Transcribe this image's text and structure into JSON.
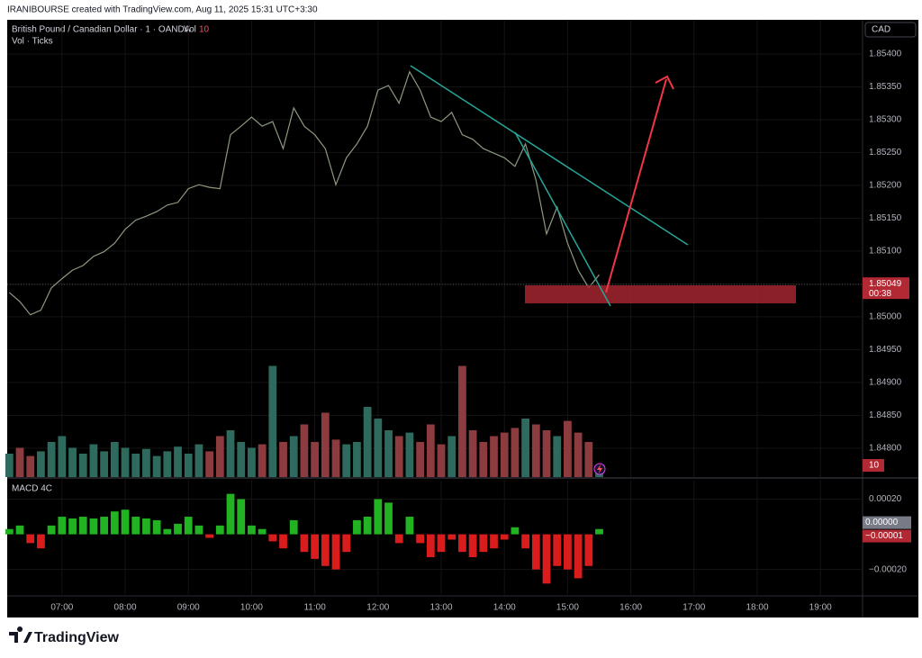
{
  "header": "IRANIBOURSE created with TradingView.com, Aug 11, 2025 15:31 UTC+3:30",
  "currency": "CAD",
  "legend": {
    "symbol": "British Pound / Canadian Dollar · 1 · OANDA",
    "vol_label": "Vol",
    "vol_sub": "Vol · Ticks"
  },
  "footer": "TradingView",
  "chart_data": [
    {
      "type": "line",
      "color": "#8c9a80",
      "x": [
        370,
        380,
        390,
        400,
        410,
        420,
        430,
        440,
        450,
        460,
        470,
        480,
        490,
        500,
        510,
        520,
        530,
        540,
        550,
        560,
        570,
        580,
        590,
        600,
        610,
        620,
        630,
        640,
        650,
        660,
        670,
        680,
        690,
        700,
        710,
        720,
        730,
        740,
        750,
        760,
        770,
        780,
        790,
        800,
        810,
        820,
        830,
        840,
        850,
        860,
        870,
        880,
        890,
        900,
        910,
        920,
        930
      ],
      "values": [
        1.85037,
        1.85023,
        1.85003,
        1.8501,
        1.85044,
        1.85058,
        1.85071,
        1.85078,
        1.85092,
        1.85099,
        1.85112,
        1.85133,
        1.85147,
        1.85153,
        1.8516,
        1.8517,
        1.85174,
        1.85195,
        1.85201,
        1.85197,
        1.85195,
        1.85277,
        1.8529,
        1.85304,
        1.8529,
        1.85297,
        1.85256,
        1.85318,
        1.8529,
        1.85277,
        1.85256,
        1.85201,
        1.85242,
        1.85263,
        1.8529,
        1.85345,
        1.85352,
        1.85325,
        1.85373,
        1.85345,
        1.85304,
        1.85297,
        1.85311,
        1.85277,
        1.8527,
        1.85256,
        1.85249,
        1.85242,
        1.85229,
        1.85263,
        1.85208,
        1.85126,
        1.85167,
        1.85112,
        1.85071,
        1.85044,
        1.85064
      ],
      "xlim": [
        368,
        1180
      ],
      "xticks": [
        {
          "value": 420,
          "label": "07:00"
        },
        {
          "value": 480,
          "label": "08:00"
        },
        {
          "value": 540,
          "label": "09:00"
        },
        {
          "value": 600,
          "label": "10:00"
        },
        {
          "value": 660,
          "label": "11:00"
        },
        {
          "value": 720,
          "label": "12:00"
        },
        {
          "value": 780,
          "label": "13:00"
        },
        {
          "value": 840,
          "label": "14:00"
        },
        {
          "value": 900,
          "label": "15:00"
        },
        {
          "value": 960,
          "label": "16:00"
        },
        {
          "value": 1020,
          "label": "17:00"
        },
        {
          "value": 1080,
          "label": "18:00"
        },
        {
          "value": 1140,
          "label": "19:00"
        }
      ],
      "ylim": [
        1.84756,
        1.85452
      ],
      "yticks": [
        {
          "value": 1.854,
          "label": "1.85400"
        },
        {
          "value": 1.8535,
          "label": "1.85350"
        },
        {
          "value": 1.853,
          "label": "1.85300"
        },
        {
          "value": 1.8525,
          "label": "1.85250"
        },
        {
          "value": 1.852,
          "label": "1.85200"
        },
        {
          "value": 1.8515,
          "label": "1.85150"
        },
        {
          "value": 1.851,
          "label": "1.85100"
        },
        {
          "value": 1.8505,
          "label": "1.85050"
        },
        {
          "value": 1.85,
          "label": "1.85000"
        },
        {
          "value": 1.8495,
          "label": "1.84950"
        },
        {
          "value": 1.849,
          "label": "1.84900"
        },
        {
          "value": 1.8485,
          "label": "1.84850"
        },
        {
          "value": 1.848,
          "label": "1.84800"
        }
      ],
      "grid": true,
      "last_value": 1.85049,
      "countdown": "00:38",
      "last_color": "#b22833"
    },
    {
      "type": "bar",
      "up_color": "#2e6b5e",
      "down_color": "#8c3b3f",
      "values": [
        20,
        25,
        18,
        22,
        30,
        35,
        25,
        20,
        28,
        22,
        30,
        25,
        20,
        24,
        18,
        22,
        26,
        20,
        28,
        22,
        35,
        40,
        30,
        25,
        28,
        95,
        30,
        35,
        45,
        30,
        55,
        32,
        28,
        30,
        60,
        50,
        40,
        35,
        38,
        30,
        45,
        28,
        35,
        95,
        40,
        30,
        35,
        38,
        42,
        50,
        45,
        40,
        35,
        48,
        38,
        30,
        10
      ],
      "ylim": [
        0,
        100
      ],
      "last_value": 10,
      "last_color": "#b22833"
    },
    {
      "type": "bar",
      "title": "MACD 4C",
      "up_color": "#22b322",
      "down_color": "#d91c1c",
      "values": [
        3e-05,
        5e-05,
        -5e-05,
        -8e-05,
        5e-05,
        0.0001,
        9e-05,
        0.0001,
        9e-05,
        0.0001,
        0.00013,
        0.00014,
        0.0001,
        9e-05,
        8e-05,
        3e-05,
        6e-05,
        0.0001,
        5e-05,
        -2e-05,
        5e-05,
        0.00023,
        0.0002,
        5e-05,
        3e-05,
        -4e-05,
        -8e-05,
        8e-05,
        -0.0001,
        -0.00014,
        -0.00018,
        -0.0002,
        -0.0001,
        8e-05,
        0.0001,
        0.0002,
        0.00018,
        -5e-05,
        0.0001,
        -5e-05,
        -0.00013,
        -0.0001,
        -3e-05,
        -0.0001,
        -0.00013,
        -0.0001,
        -8e-05,
        -3e-05,
        4e-05,
        -8e-05,
        -0.0002,
        -0.00028,
        -0.00018,
        -0.0002,
        -0.00025,
        -0.00018,
        3e-05
      ],
      "ylim": [
        -0.00035,
        0.00031
      ],
      "yticks": [
        {
          "value": 0.0002,
          "label": "0.00020"
        },
        {
          "value": -0.0002,
          "label": "−0.00020"
        }
      ],
      "last_labels": [
        {
          "value": 0,
          "label": "0.00000",
          "color": "#787b86"
        },
        {
          "value": -1e-05,
          "label": "−0.00001",
          "color": "#b22833"
        }
      ]
    }
  ]
}
